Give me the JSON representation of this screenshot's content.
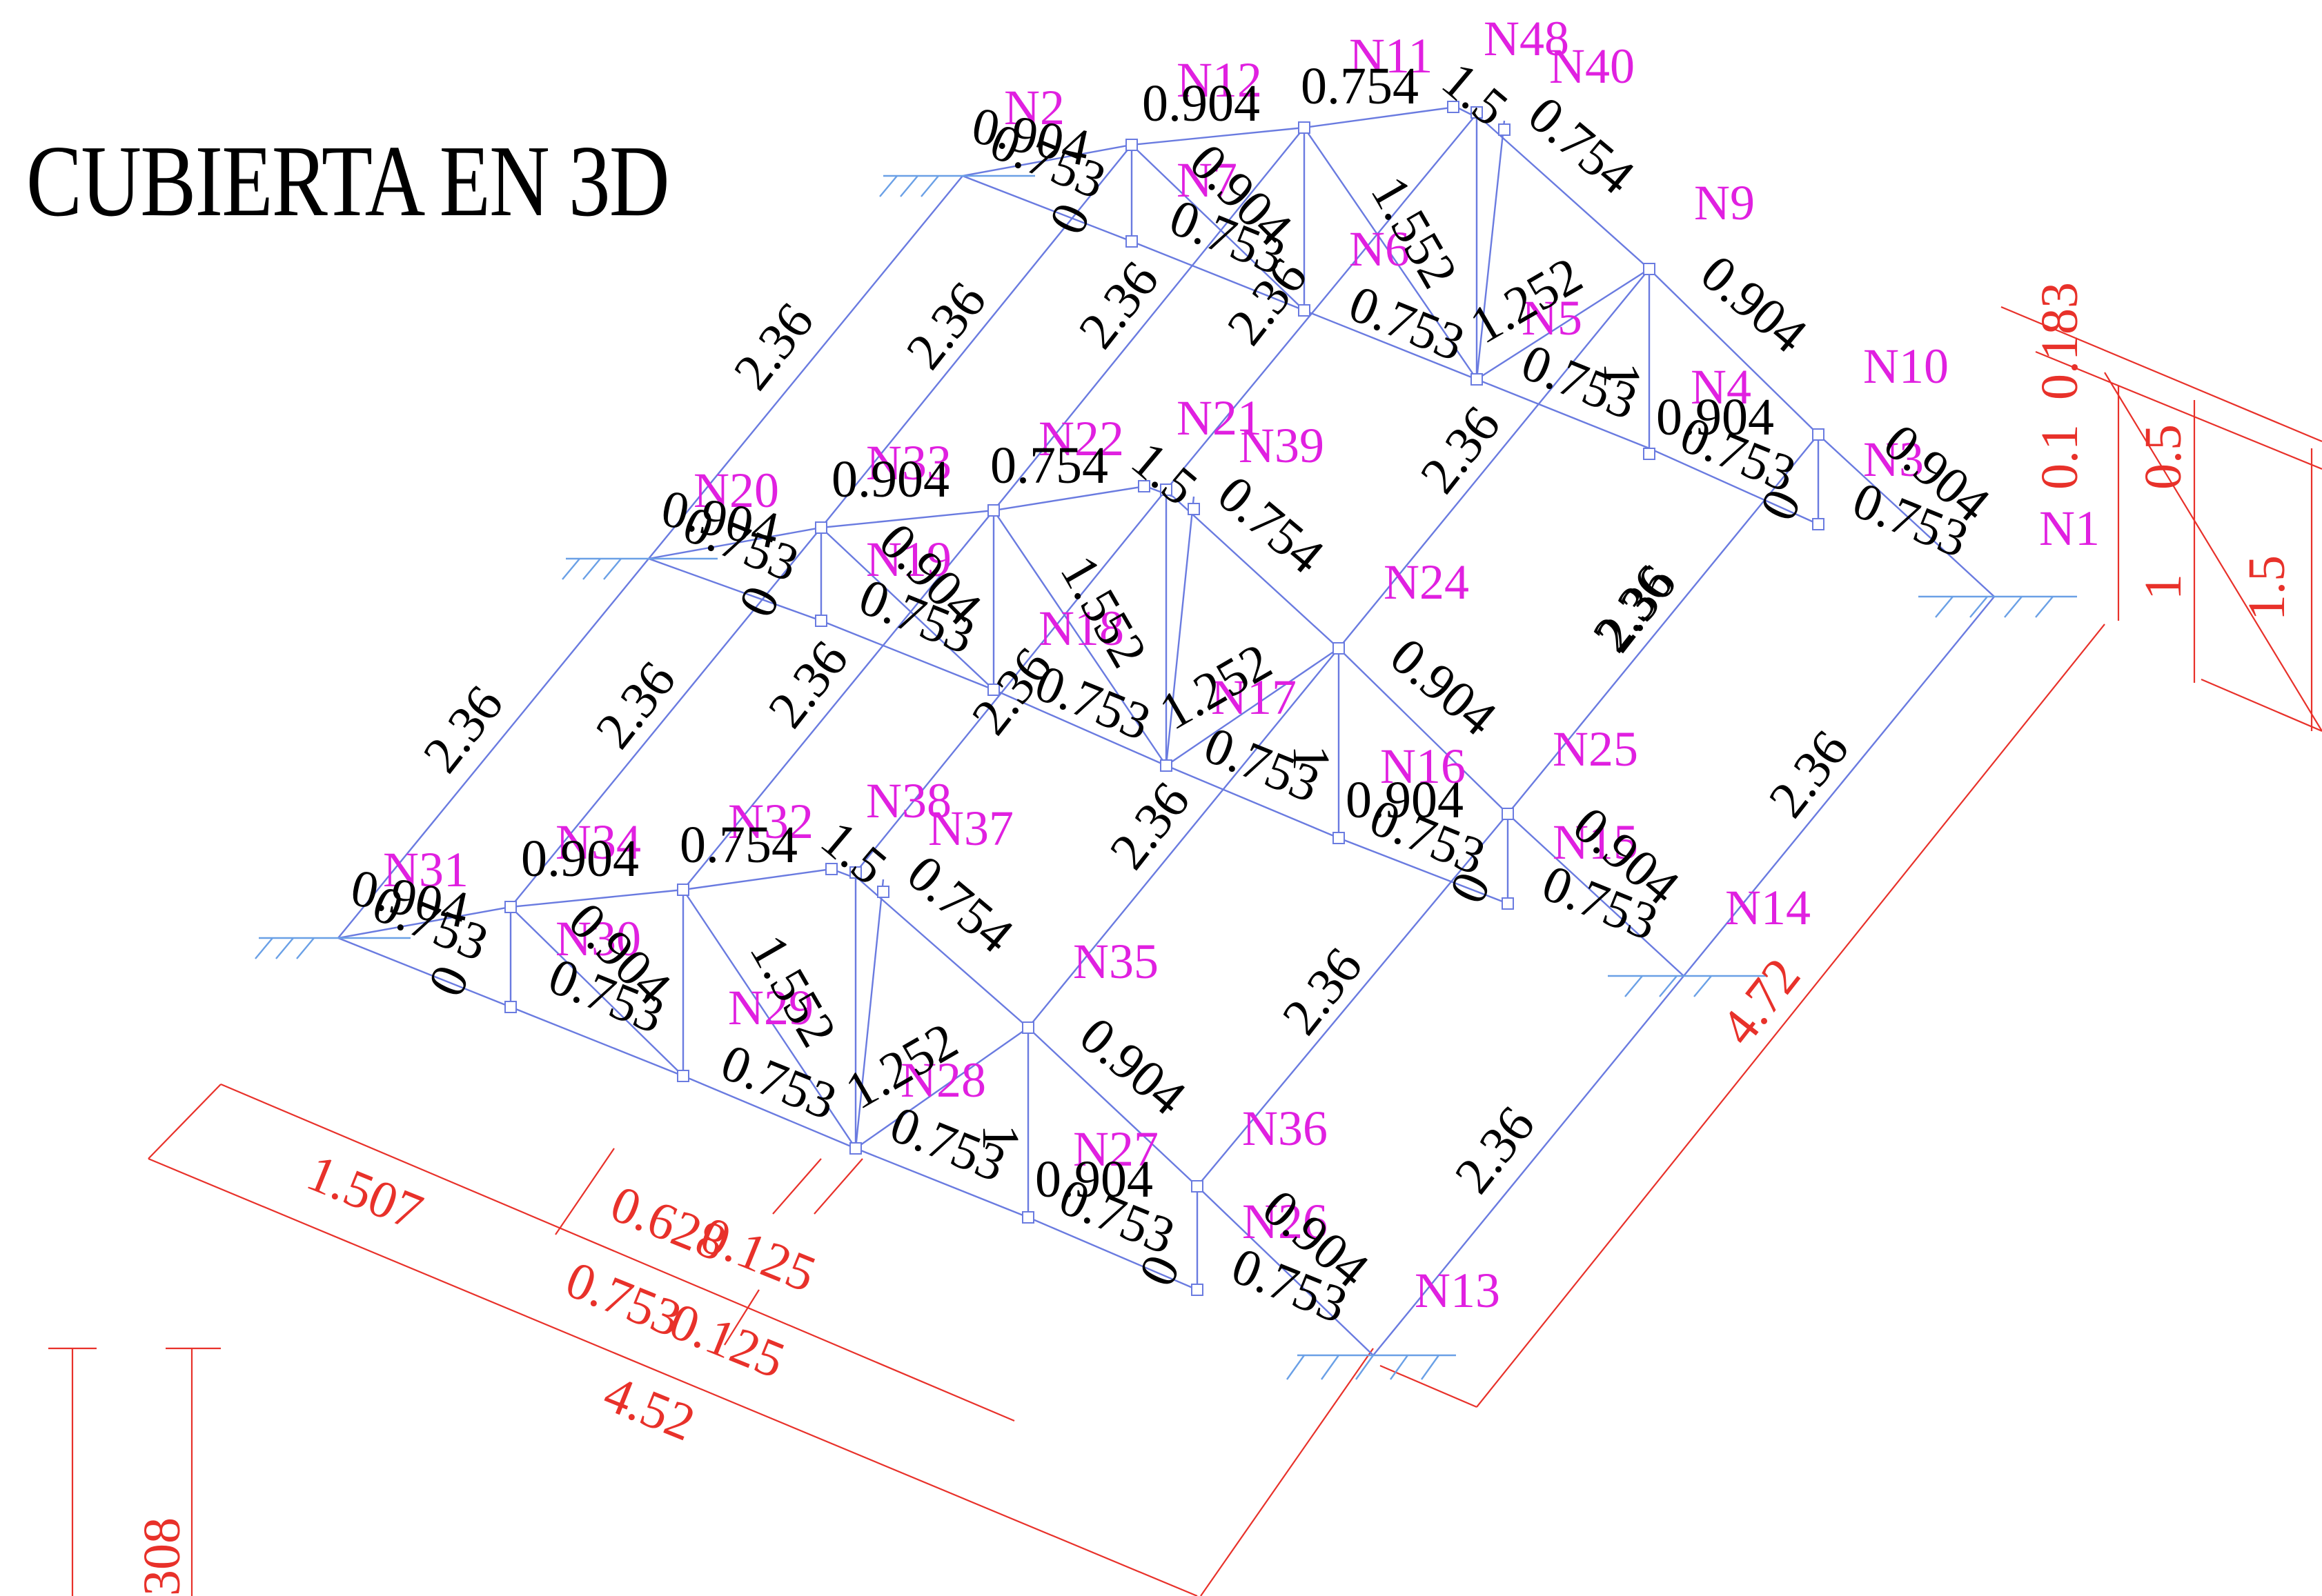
{
  "title": "CUBIERTA EN  3D",
  "colors": {
    "members": "#6a7be0",
    "nodes": "#e020e0",
    "dimensions": "#e8312a",
    "text": "#000000"
  },
  "node_labels": {
    "N2": "N2",
    "N12": "N12",
    "N11": "N11",
    "N48": "N48",
    "N40": "N40",
    "N7": "N7",
    "N6": "N6",
    "N5": "N5",
    "N9": "N9",
    "N4": "N4",
    "N10": "N10",
    "N3": "N3",
    "N1": "N1",
    "N20": "N20",
    "N33": "N33",
    "N22": "N22",
    "N21": "N21",
    "N39": "N39",
    "N19": "N19",
    "N18": "N18",
    "N17": "N17",
    "N24": "N24",
    "N25": "N25",
    "N16": "N16",
    "N15": "N15",
    "N14": "N14",
    "N31": "N31",
    "N34": "N34",
    "N32": "N32",
    "N38": "N38",
    "N37": "N37",
    "N30": "N30",
    "N29": "N29",
    "N35": "N35",
    "N28": "N28",
    "N27": "N27",
    "N36": "N36",
    "N26": "N26",
    "N13": "N13"
  },
  "member_labels": {
    "v0904": "0.904",
    "v0753": "0.753",
    "v0754": "0.754",
    "v0": "0",
    "v236": "2.36",
    "v15": "1.5",
    "v1552": "1.552",
    "v1252": "1.252",
    "v1": "1"
  },
  "dimension_labels": {
    "d1507": "1.507",
    "d0628": "0.628",
    "d0125a": "0.125",
    "d0753": "0.753",
    "d0125b": "0.125",
    "d452": "4.52",
    "d472": "4.72",
    "d1": "1",
    "d15": "1.5",
    "d05": "0.5",
    "d0183": "0.183",
    "d01": "0.1",
    "d308": "308"
  }
}
